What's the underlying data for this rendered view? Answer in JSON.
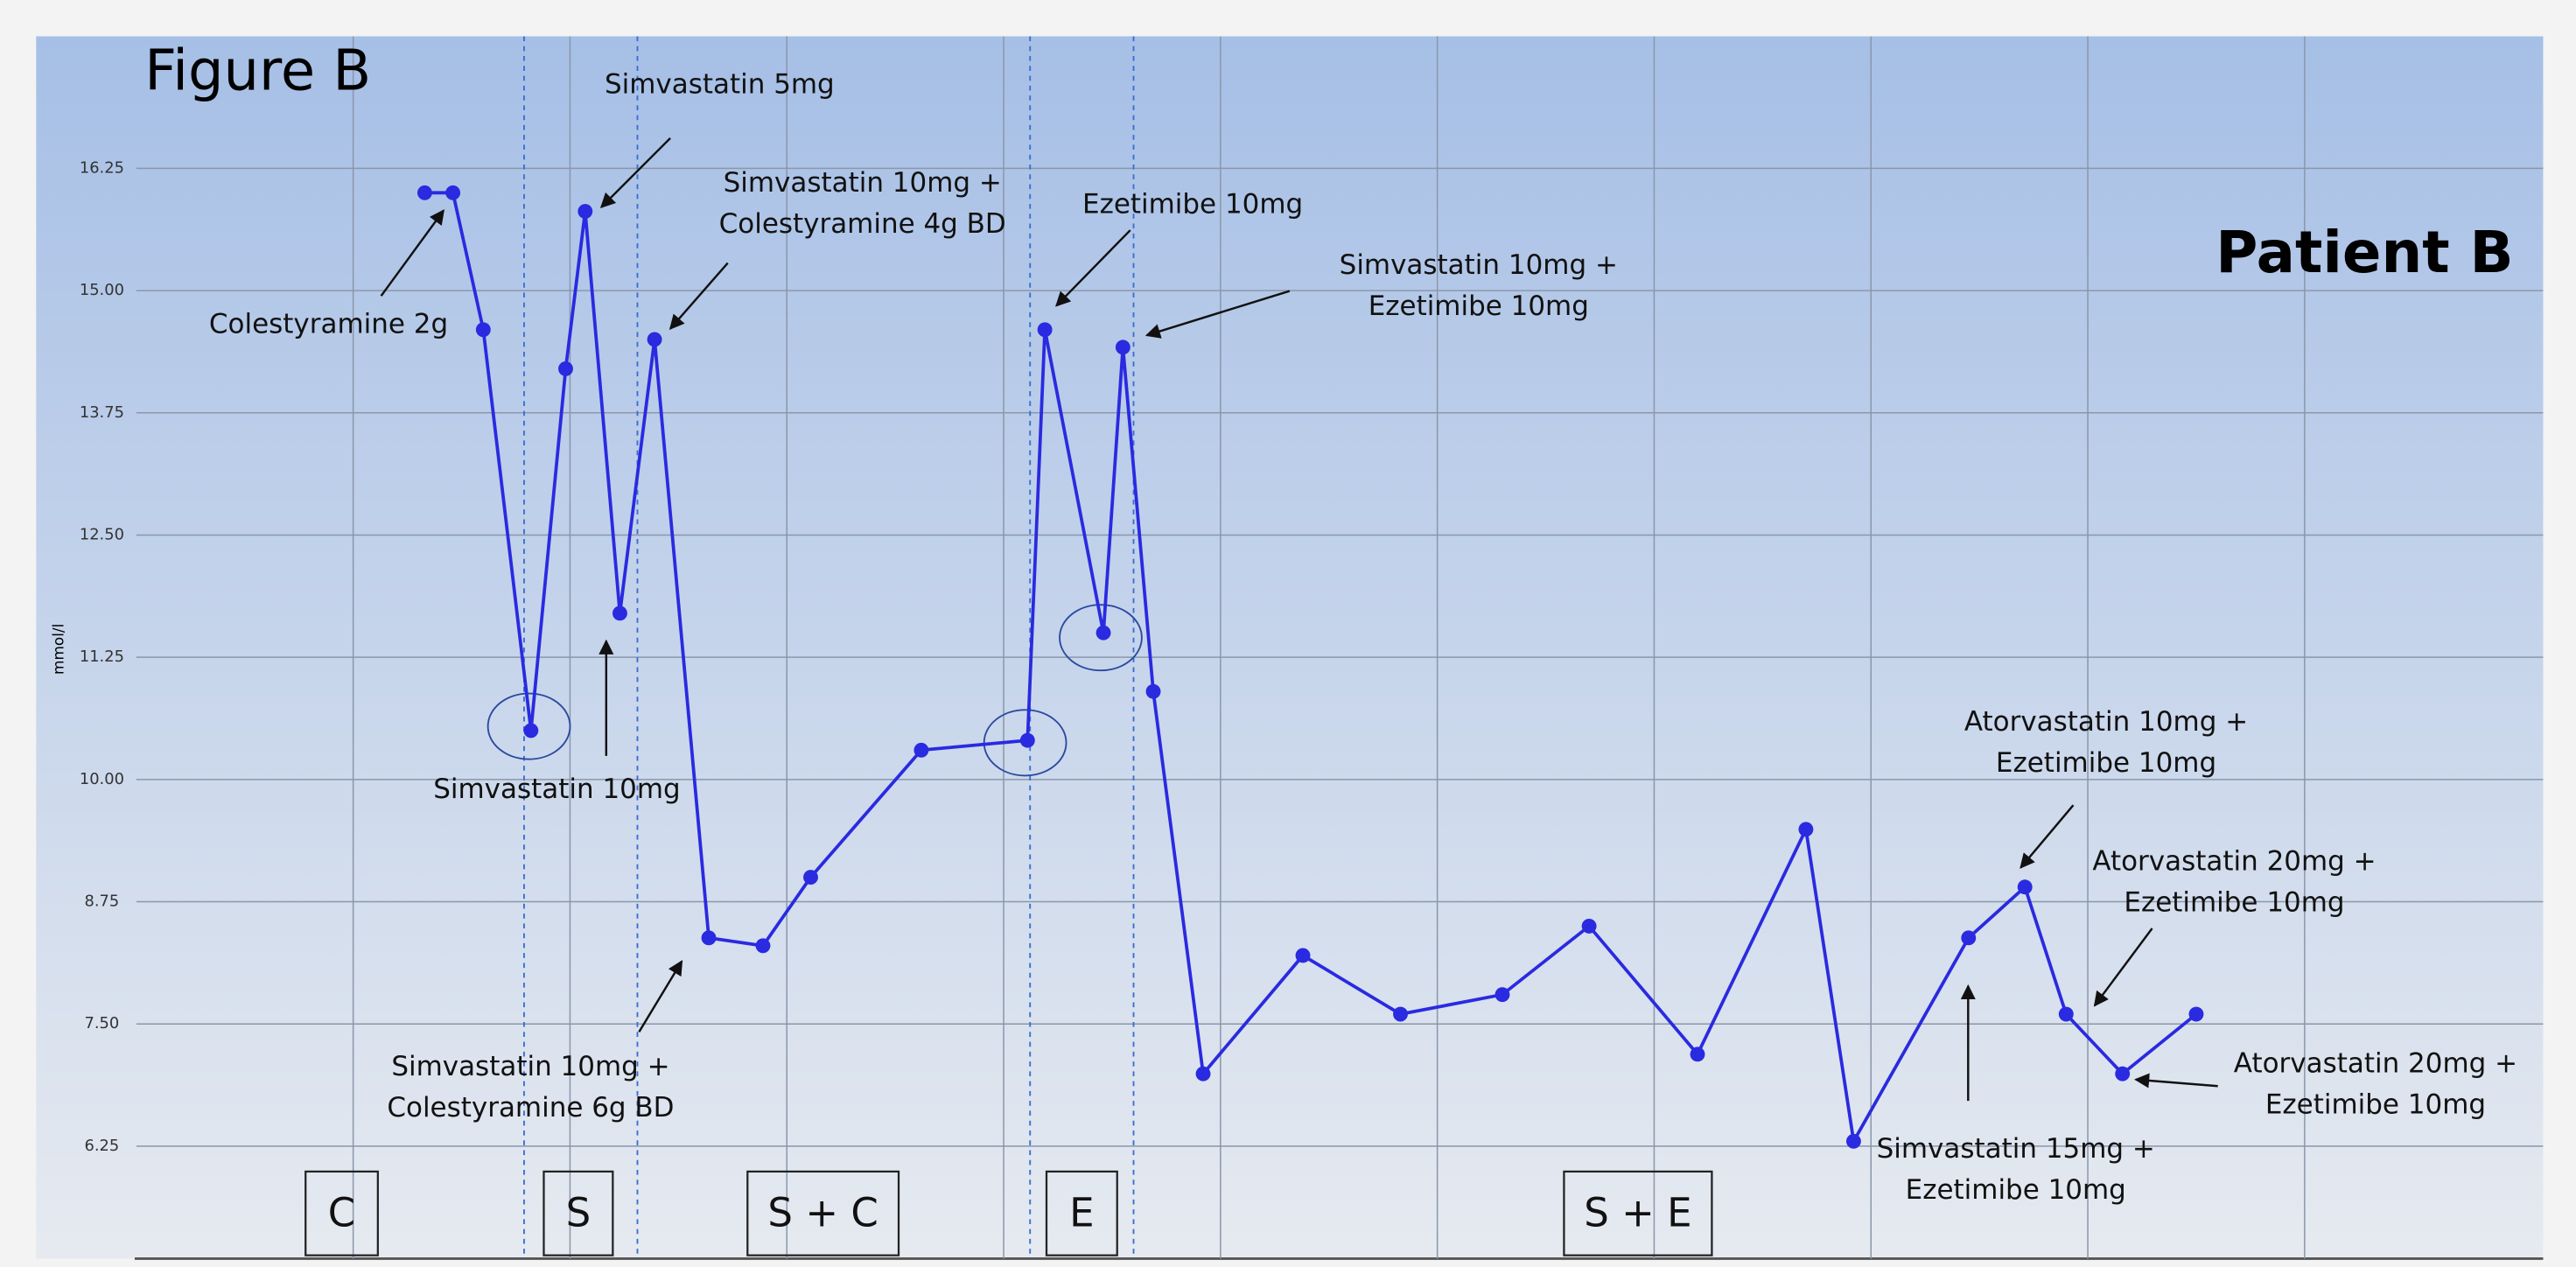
{
  "chart_data": {
    "type": "line",
    "title": "Figure B",
    "subtitle": "Patient B",
    "y_label": "mmol/l",
    "x": [
      1.33,
      1.46,
      1.6,
      1.82,
      1.98,
      2.07,
      2.23,
      2.39,
      2.64,
      2.89,
      3.11,
      3.62,
      4.11,
      4.19,
      4.46,
      4.55,
      4.69,
      4.92,
      5.38,
      5.83,
      6.3,
      6.7,
      7.2,
      7.7,
      7.92,
      8.45,
      8.71,
      8.9,
      9.16,
      9.5
    ],
    "series": [
      {
        "name": null,
        "color": "#2a2ae0",
        "values": [
          16.0,
          16.0,
          14.6,
          10.5,
          14.2,
          15.81,
          11.7,
          14.5,
          8.38,
          8.3,
          9.0,
          10.3,
          10.4,
          14.6,
          11.5,
          14.42,
          10.9,
          6.99,
          8.2,
          7.6,
          7.8,
          8.5,
          7.19,
          9.49,
          6.3,
          8.38,
          8.9,
          7.6,
          6.99,
          7.6
        ]
      }
    ],
    "xlim": [
      0,
      11.1
    ],
    "xticks": [
      1,
      2,
      3,
      4,
      5,
      6,
      7,
      8,
      9,
      10
    ],
    "ylim": [
      5.1,
      17.6
    ],
    "yticks": [
      {
        "value": 6.25,
        "label": "6.25"
      },
      {
        "value": 7.5,
        "label": "7.50"
      },
      {
        "value": 8.75,
        "label": "8.75"
      },
      {
        "value": 10,
        "label": "10.00"
      },
      {
        "value": 11.25,
        "label": "11.25"
      },
      {
        "value": 12.5,
        "label": "12.50"
      },
      {
        "value": 13.75,
        "label": "13.75"
      },
      {
        "value": 15,
        "label": "15.00"
      },
      {
        "value": 16.25,
        "label": "16.25"
      }
    ],
    "grid": true,
    "annotations": [
      {
        "lines": [
          "Colestyramine 2g"
        ]
      },
      {
        "lines": [
          "Simvastatin 5mg"
        ]
      },
      {
        "lines": [
          "Simvastatin 10mg +",
          "Colestyramine 4g BD"
        ]
      },
      {
        "lines": [
          "Ezetimibe 10mg"
        ]
      },
      {
        "lines": [
          "Simvastatin 10mg +",
          "Ezetimibe 10mg"
        ]
      },
      {
        "lines": [
          "Simvastatin 10mg"
        ]
      },
      {
        "lines": [
          "Simvastatin 10mg +",
          "Colestyramine 6g BD"
        ]
      },
      {
        "lines": [
          "Atorvastatin 10mg +",
          "Ezetimibe 10mg"
        ]
      },
      {
        "lines": [
          "Atorvastatin 20mg +",
          "Ezetimibe 10mg"
        ]
      },
      {
        "lines": [
          "Atorvastatin 20mg +",
          "Ezetimibe 10mg"
        ]
      },
      {
        "lines": [
          "Simvastatin 15mg +",
          "Ezetimibe 10mg"
        ]
      }
    ],
    "phases": [
      "C",
      "S",
      "S + C",
      "E",
      "S + E"
    ]
  }
}
